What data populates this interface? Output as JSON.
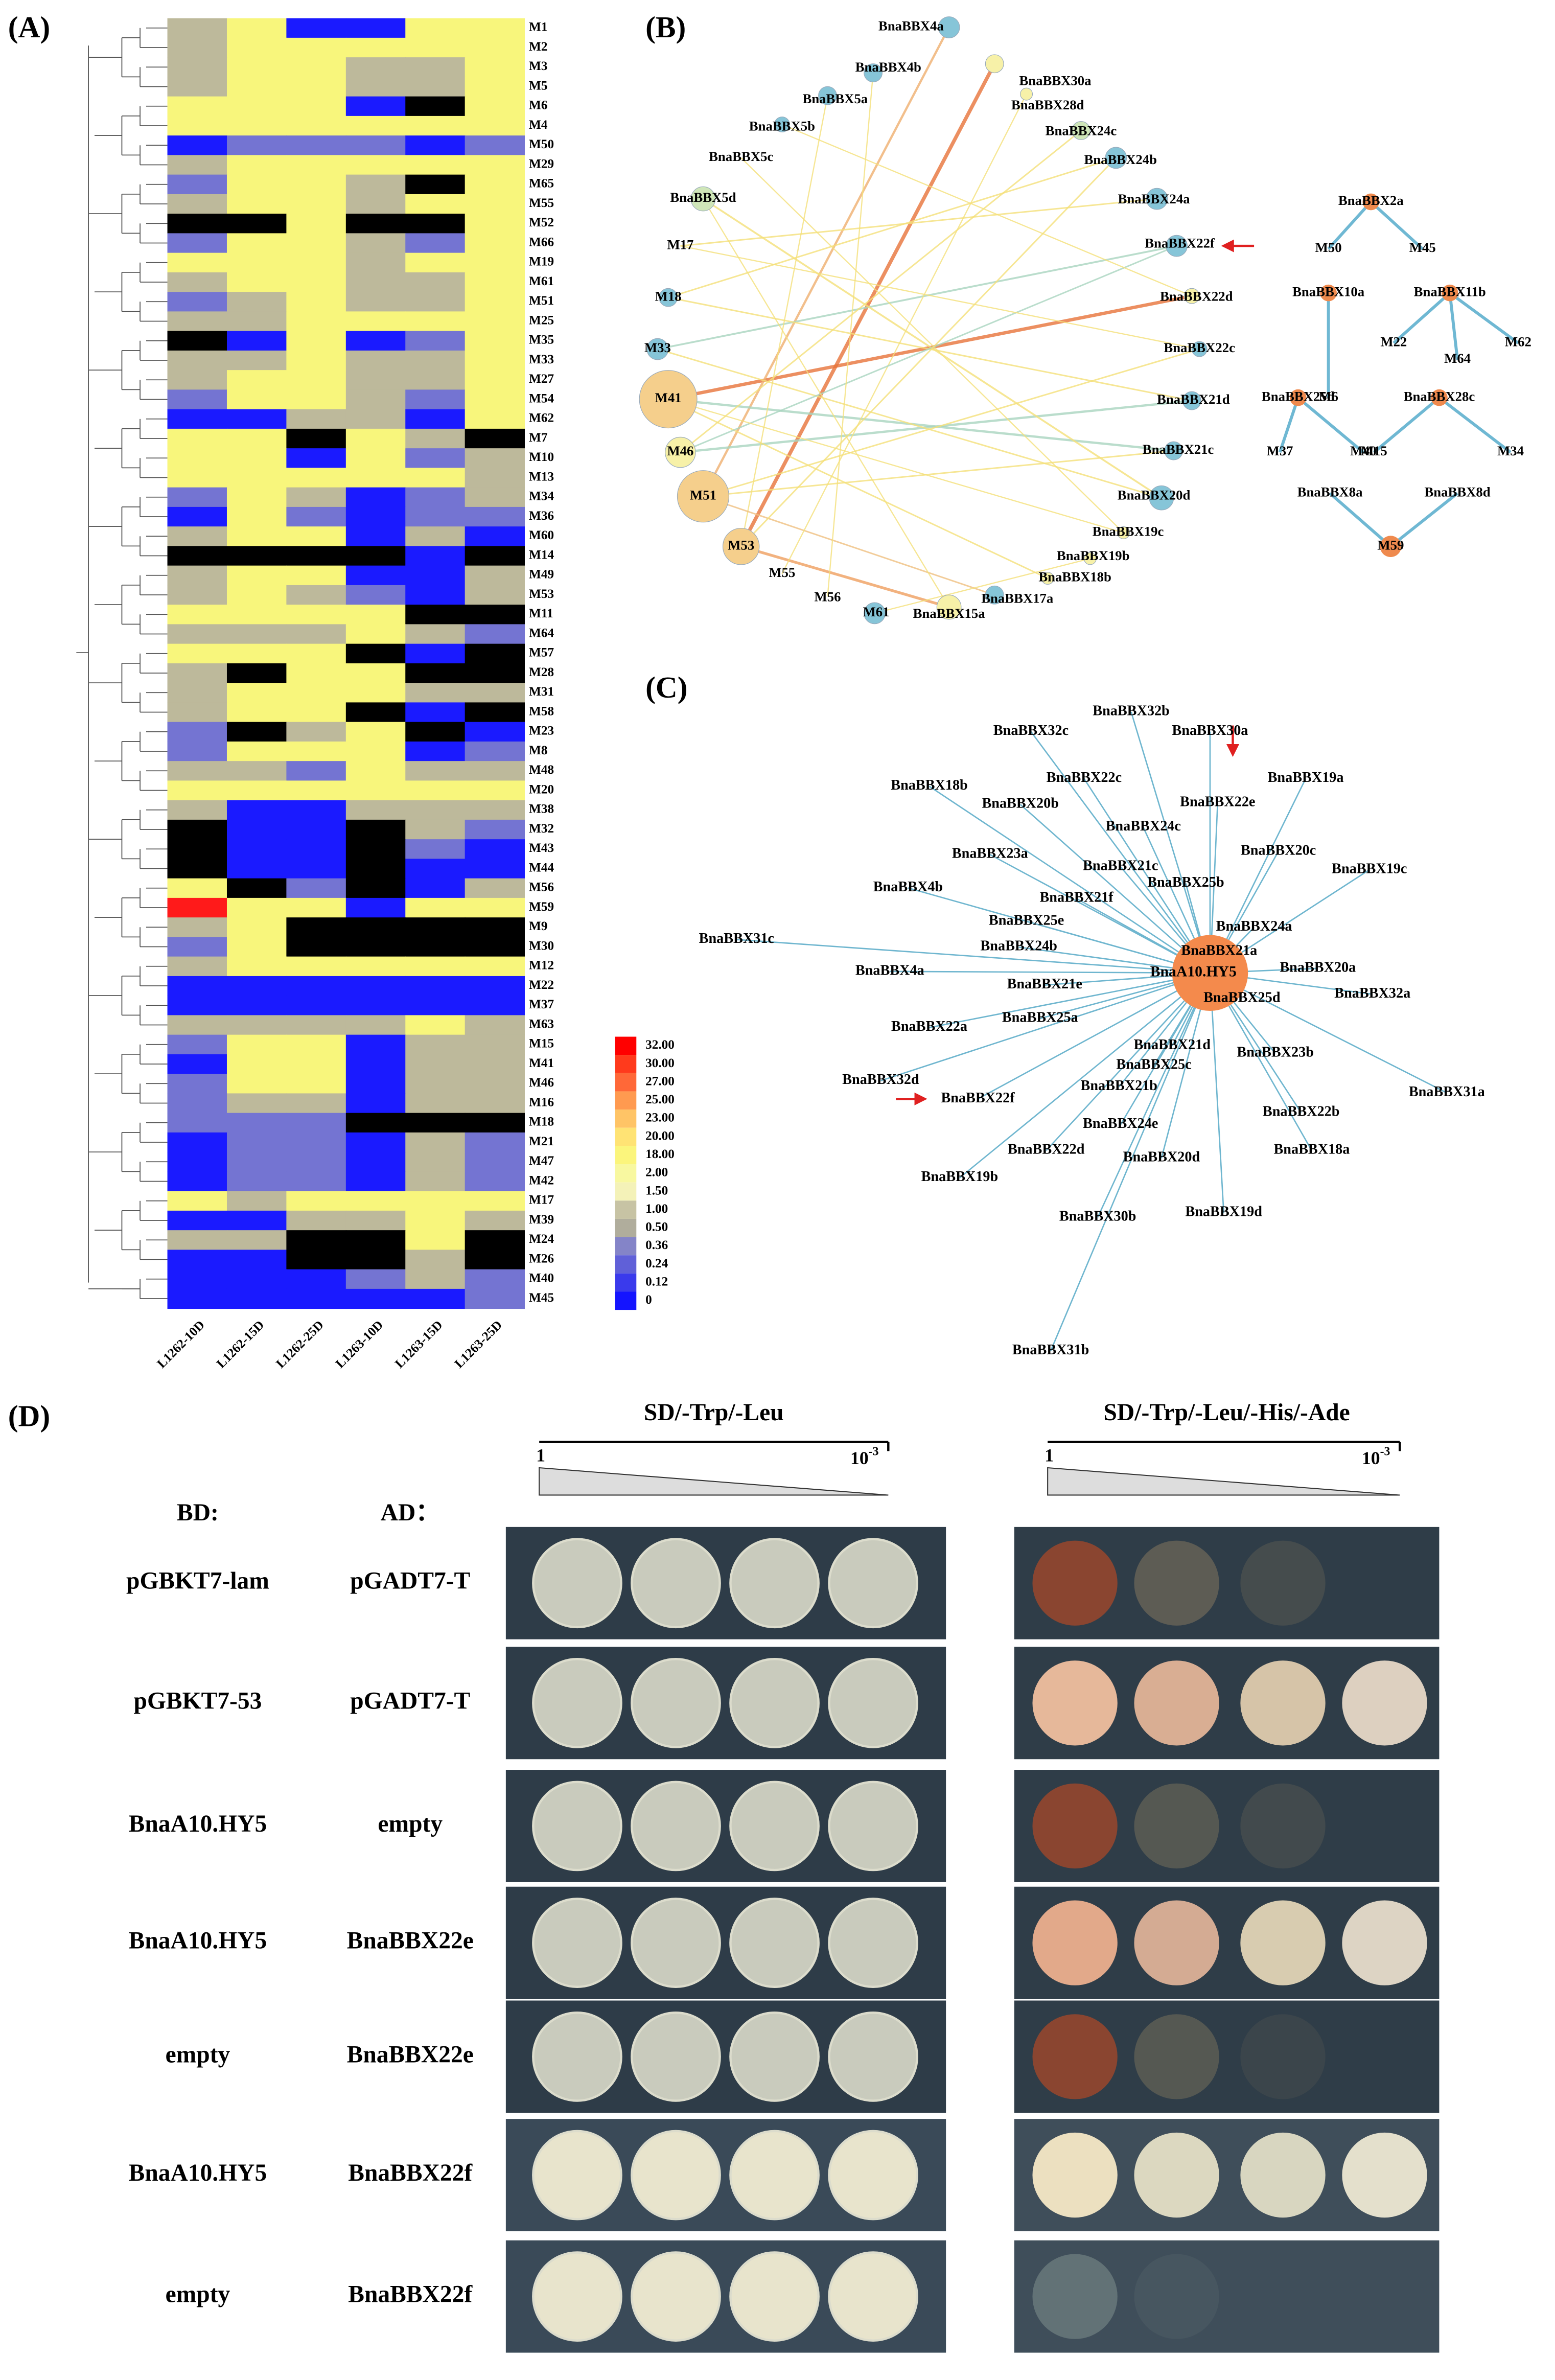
{
  "panel_a": {
    "label": "(A)",
    "rows": [
      "M1",
      "M2",
      "M3",
      "M5",
      "M6",
      "M4",
      "M50",
      "M29",
      "M65",
      "M55",
      "M52",
      "M66",
      "M19",
      "M61",
      "M51",
      "M25",
      "M35",
      "M33",
      "M27",
      "M54",
      "M62",
      "M7",
      "M10",
      "M13",
      "M34",
      "M36",
      "M60",
      "M14",
      "M49",
      "M53",
      "M11",
      "M64",
      "M57",
      "M28",
      "M31",
      "M58",
      "M23",
      "M8",
      "M48",
      "M20",
      "M38",
      "M32",
      "M43",
      "M44",
      "M56",
      "M59",
      "M9",
      "M30",
      "M12",
      "M22",
      "M37",
      "M63",
      "M15",
      "M41",
      "M46",
      "M16",
      "M18",
      "M21",
      "M47",
      "M42",
      "M17",
      "M39",
      "M24",
      "M26",
      "M40",
      "M45"
    ],
    "cells": [
      "GYBBYY",
      "GYYYYY",
      "GYYGGY",
      "GYYGGY",
      "YYYBKY",
      "YYYYYY",
      "BLLLBL",
      "GYYYYY",
      "LYYGKY",
      "GYYGYY",
      "KKYKKY",
      "LYYGLY",
      "YYYGYY",
      "GYYGGY",
      "LGYGGY",
      "GGYYYY",
      "KBYBLY",
      "GGYGGY",
      "GYYGGY",
      "LYYGLY",
      "BBGGBY",
      "YYKYGK",
      "YYBYLG",
      "YYYYYG",
      "LYGBLG",
      "BYLBLL",
      "GYYBGB",
      "KKKKBK",
      "GYYBBG",
      "GYGLBG",
      "YYYYKK",
      "GGGYGL",
      "YYYKBK",
      "GKYYKK",
      "GYYYGG",
      "GYYKBK",
      "LKGYKB",
      "LYYYBL",
      "GGLYGG",
      "YYYYYY",
      "GBBGGG",
      "KBBKGL",
      "KBBKLB",
      "KBBKBB",
      "YKLKBG",
      "RYYBYY",
      "GYKKKK",
      "LYKKKK",
      "GYYYYY",
      "BBBBBB",
      "BBBBBB",
      "GGGGYG",
      "LYYBGG",
      "BYYBGG",
      "LYYBGG",
      "LGGBGG",
      "LLLKKK",
      "BLLBGL",
      "BLLBGL",
      "BLLBGL",
      "YGYYYY",
      "BBGGYG",
      "GGKKYK",
      "BBKKGK",
      "BBBLGL",
      "BBBBBL"
    ],
    "cell_palette": {
      "Y": "#f8f67c",
      "G": "#bdb99b",
      "B": "#1a1aff",
      "L": "#7474d2",
      "K": "#000000",
      "R": "#ff1a1a"
    },
    "columns": [
      "L1262-10D",
      "L1262-15D",
      "L1262-25D",
      "L1263-10D",
      "L1263-15D",
      "L1263-25D"
    ],
    "legend": [
      {
        "value": 32,
        "label": "32.00"
      },
      {
        "value": 30,
        "label": "30.00"
      },
      {
        "value": 27,
        "label": "27.00"
      },
      {
        "value": 25,
        "label": "25.00"
      },
      {
        "value": 23,
        "label": "23.00"
      },
      {
        "value": 20,
        "label": "20.00"
      },
      {
        "value": 18,
        "label": "18.00"
      },
      {
        "value": 2,
        "label": "2.00"
      },
      {
        "value": 1.5,
        "label": "1.50"
      },
      {
        "value": 1,
        "label": "1.00"
      },
      {
        "value": 0.5,
        "label": "0.50"
      },
      {
        "value": 0.36,
        "label": "0.36"
      },
      {
        "value": 0.24,
        "label": "0.24"
      },
      {
        "value": 0.12,
        "label": "0.12"
      },
      0
    ],
    "legend_colors": [
      "#ff0000",
      "#ff3a1c",
      "#ff6838",
      "#ff9a50",
      "#ffc466",
      "#ffe374",
      "#fbf57c",
      "#f8f8a0",
      "#f4f2b8",
      "#c7c3a4",
      "#b0ad9c",
      "#8484c8",
      "#6060d8",
      "#3a3aec",
      "#1414ff"
    ]
  },
  "panel_b": {
    "label": "(B)",
    "nodes": [
      "BnaBBX4a",
      "BnaBBX30a",
      "BnaBBX28d",
      "BnaBBX24c",
      "BnaBBX24b",
      "BnaBBX24a",
      "BnaBBX22f",
      "BnaBBX22d",
      "BnaBBX22c",
      "BnaBBX21d",
      "BnaBBX21c",
      "BnaBBX20d",
      "BnaBBX19c",
      "BnaBBX19b",
      "BnaBBX18b",
      "BnaBBX17a",
      "BnaBBX15a",
      "M61",
      "M56",
      "M55",
      "M53",
      "M51",
      "M46",
      "M41",
      "M33",
      "M18",
      "M17",
      "BnaBBX5d",
      "BnaBBX5c",
      "BnaBBX5b",
      "BnaBBX5a",
      "BnaBBX4b"
    ],
    "subnetworks": [
      {
        "hub": "BnaBBX2a",
        "targets": [
          "M50",
          "M45"
        ]
      },
      {
        "hub": "BnaBBX10a",
        "targets": [
          "M6"
        ]
      },
      {
        "hub": "BnaBBX11b",
        "targets": [
          "M22",
          "M64",
          "M62"
        ]
      },
      {
        "hub": "BnaBBX25d",
        "targets": [
          "M37",
          "M40"
        ]
      },
      {
        "hub": "BnaBBX28c",
        "targets": [
          "M15",
          "M34"
        ]
      },
      {
        "hub": "BnaBBX8a",
        "targets": [
          "M59"
        ]
      },
      {
        "hub": "BnaBBX8d",
        "targets": [
          "M59"
        ]
      }
    ]
  },
  "panel_c": {
    "label": "(C)",
    "hub": "BnaA10.HY5",
    "targets": [
      "BnaBBX32b",
      "BnaBBX32c",
      "BnaBBX30a",
      "BnaBBX22c",
      "BnaBBX19a",
      "BnaBBX18b",
      "BnaBBX22e",
      "BnaBBX20b",
      "BnaBBX24c",
      "BnaBBX20c",
      "BnaBBX23a",
      "BnaBBX21c",
      "BnaBBX19c",
      "BnaBBX25b",
      "BnaBBX4b",
      "BnaBBX21f",
      "BnaBBX25e",
      "BnaBBX24a",
      "BnaBBX31c",
      "BnaBBX24b",
      "BnaBBX21a",
      "BnaBBX4a",
      "BnaBBX20a",
      "BnaBBX21e",
      "BnaBBX25d",
      "BnaBBX32a",
      "BnaBBX25a",
      "BnaBBX22a",
      "BnaBBX21d",
      "BnaBBX23b",
      "BnaBBX25c",
      "BnaBBX32d",
      "BnaBBX21b",
      "BnaBBX22f",
      "BnaBBX31a",
      "BnaBBX22b",
      "BnaBBX24e",
      "BnaBBX22d",
      "BnaBBX18a",
      "BnaBBX20d",
      "BnaBBX19b",
      "BnaBBX19d",
      "BnaBBX30b",
      "BnaBBX31b"
    ]
  },
  "panel_d": {
    "label": "(D)",
    "media": [
      "SD/-Trp/-Leu",
      "SD/-Trp/-Leu/-His/-Ade"
    ],
    "dilution_start": "1",
    "dilution_end": {
      "base": "10",
      "exp": "-3"
    },
    "bd_header": "BD:",
    "ad_header": "AD：",
    "rows": [
      [
        "pGBKT7-lam",
        "pGADT7-T"
      ],
      [
        "pGBKT7-53",
        "pGADT7-T"
      ],
      [
        "BnaA10.HY5",
        "empty"
      ],
      [
        "BnaA10.HY5",
        "BnaBBX22e"
      ],
      [
        "empty",
        "BnaBBX22e"
      ],
      [
        "BnaA10.HY5",
        "BnaBBX22f"
      ],
      [
        "empty",
        "BnaBBX22f"
      ]
    ]
  }
}
